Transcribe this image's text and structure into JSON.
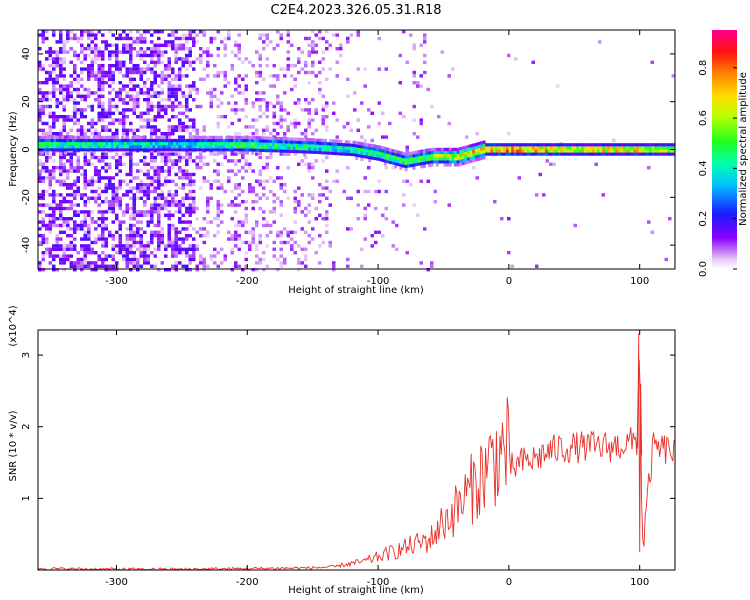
{
  "figure_title": "C2E4.2023.326.05.31.R18",
  "chart_data": [
    {
      "type": "heatmap",
      "title": "C2E4.2023.326.05.31.R18",
      "xlabel": "Height of straight line (km)",
      "ylabel": "Frequency (Hz)",
      "xlim": [
        -360,
        127
      ],
      "ylim": [
        -50,
        50
      ],
      "x_ticks": [
        -300,
        -200,
        -100,
        0,
        100
      ],
      "x_tick_labels": [
        "-300",
        "-200",
        "-100",
        "0",
        "100"
      ],
      "y_ticks": [
        -40,
        -20,
        0,
        20,
        40
      ],
      "y_tick_labels": [
        "-40",
        "-20",
        "0",
        "20",
        "40"
      ],
      "colorbar": {
        "label": "Normalized spectral amplitude",
        "range": [
          0,
          0.95
        ],
        "ticks": [
          0.0,
          0.2,
          0.4,
          0.6,
          0.8
        ],
        "tick_labels": [
          "0.0",
          "0.2",
          "0.4",
          "0.6",
          "0.8"
        ],
        "colormap": "hsv-rainbow (white → violet → blue → cyan → green → yellow → orange → red → magenta)"
      },
      "ridge": {
        "description": "narrow high-amplitude band near 0 Hz",
        "x": [
          -355,
          -300,
          -250,
          -200,
          -150,
          -120,
          -100,
          -80,
          -60,
          -40,
          -20,
          0,
          50,
          100,
          127
        ],
        "frequency_hz": [
          2,
          2,
          2,
          2,
          1,
          0,
          -2,
          -5,
          -3,
          -3,
          0,
          0,
          0,
          0,
          0
        ],
        "peak_amplitude": [
          0.5,
          0.45,
          0.4,
          0.55,
          0.45,
          0.45,
          0.5,
          0.55,
          0.6,
          0.7,
          0.85,
          0.9,
          0.75,
          0.8,
          0.7
        ]
      },
      "grid": false
    },
    {
      "type": "line",
      "xlabel": "Height of straight line (km)",
      "ylabel": "SNR (10 * v/v)",
      "y_multiplier_label": "(x10^4)",
      "xlim": [
        -360,
        127
      ],
      "ylim": [
        0,
        3.35
      ],
      "x_ticks": [
        -300,
        -200,
        -100,
        0,
        100
      ],
      "x_tick_labels": [
        "-300",
        "-200",
        "-100",
        "0",
        "100"
      ],
      "y_ticks": [
        1,
        2,
        3
      ],
      "y_tick_labels": [
        "1",
        "2",
        "3"
      ],
      "color": "#e8312a",
      "series": [
        {
          "x": [
            -360,
            -300,
            -250,
            -200,
            -150,
            -130,
            -110,
            -100,
            -80,
            -60,
            -50,
            -40,
            -30,
            -20,
            -10,
            0,
            10,
            20,
            30,
            40,
            60,
            80,
            98,
            100,
            102,
            110,
            120,
            127
          ],
          "y": [
            0.02,
            0.01,
            0.01,
            0.02,
            0.03,
            0.05,
            0.1,
            0.15,
            0.25,
            0.35,
            0.55,
            0.7,
            0.9,
            1.1,
            1.3,
            1.4,
            1.5,
            1.55,
            1.65,
            1.7,
            1.72,
            1.72,
            1.8,
            3.3,
            0.25,
            1.7,
            1.68,
            1.65
          ]
        }
      ],
      "grid": false
    }
  ]
}
